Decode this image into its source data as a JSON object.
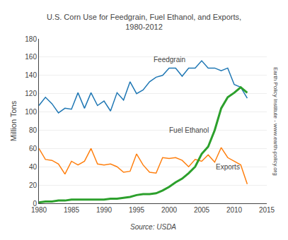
{
  "chart_data": {
    "type": "line",
    "title": "U.S. Corn Use for Feedgrain, Fuel Ethanol, and Exports,\n1980-2012",
    "y_label": "Million Tons",
    "annotations": [
      "Source: USDA",
      "Earth Policy Institute - www.earth-policy.org"
    ],
    "x": [
      1980,
      1981,
      1982,
      1983,
      1984,
      1985,
      1986,
      1987,
      1988,
      1989,
      1990,
      1991,
      1992,
      1993,
      1994,
      1995,
      1996,
      1997,
      1998,
      1999,
      2000,
      2001,
      2002,
      2003,
      2004,
      2005,
      2006,
      2007,
      2008,
      2009,
      2010,
      2011,
      2012
    ],
    "series": [
      {
        "name": "Feedgrain",
        "values": [
          107,
          116,
          109,
          99,
          104,
          103,
          121,
          104,
          121,
          107,
          112,
          101,
          121,
          113,
          133,
          120,
          124,
          133,
          138,
          140,
          148,
          148,
          139,
          148,
          148,
          156,
          148,
          148,
          145,
          148,
          130,
          127,
          115
        ]
      },
      {
        "name": "Exports",
        "values": [
          60,
          48,
          47,
          43,
          32,
          46,
          42,
          46,
          60,
          43,
          42,
          43,
          40,
          34,
          35,
          54,
          42,
          34,
          33,
          50,
          49,
          50,
          47,
          40,
          48,
          46,
          53,
          45,
          61,
          50,
          46,
          42,
          21
        ]
      },
      {
        "name": "Fuel Ethanol",
        "values": [
          1,
          2,
          2,
          3,
          3,
          4,
          4,
          4,
          4,
          4,
          4,
          5,
          5,
          6,
          7,
          9,
          10,
          10,
          11,
          14,
          18,
          23,
          27,
          33,
          40,
          54,
          62,
          80,
          104,
          116,
          121,
          127,
          121
        ]
      }
    ],
    "xlim": [
      1980,
      2015
    ],
    "xticks": [
      1980,
      1985,
      1990,
      1995,
      2000,
      2005,
      2010,
      2015
    ],
    "ylim": [
      0,
      180
    ],
    "yticks": [
      0,
      20,
      40,
      60,
      80,
      100,
      120,
      140,
      160,
      180
    ],
    "grid": "y"
  }
}
